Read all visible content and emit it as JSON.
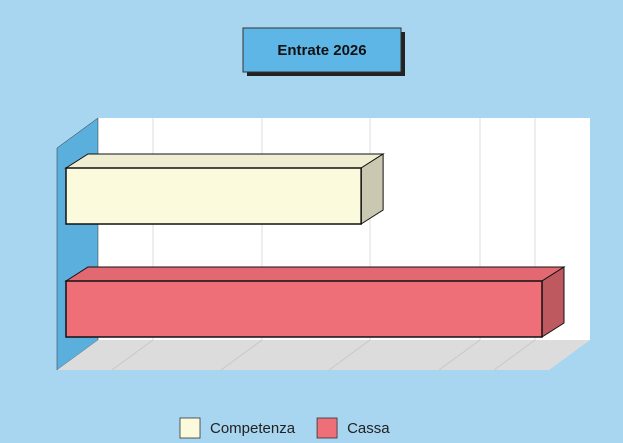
{
  "chart_data": {
    "type": "bar",
    "orientation": "horizontal",
    "title": "Entrate 2026",
    "series": [
      {
        "name": "Competenza",
        "color": "#fcfadd",
        "values": [
          62
        ]
      },
      {
        "name": "Cassa",
        "color": "#ee6f78",
        "values": [
          100
        ]
      }
    ],
    "xlim": [
      0,
      100
    ],
    "grid": true,
    "legend": "bottom"
  }
}
